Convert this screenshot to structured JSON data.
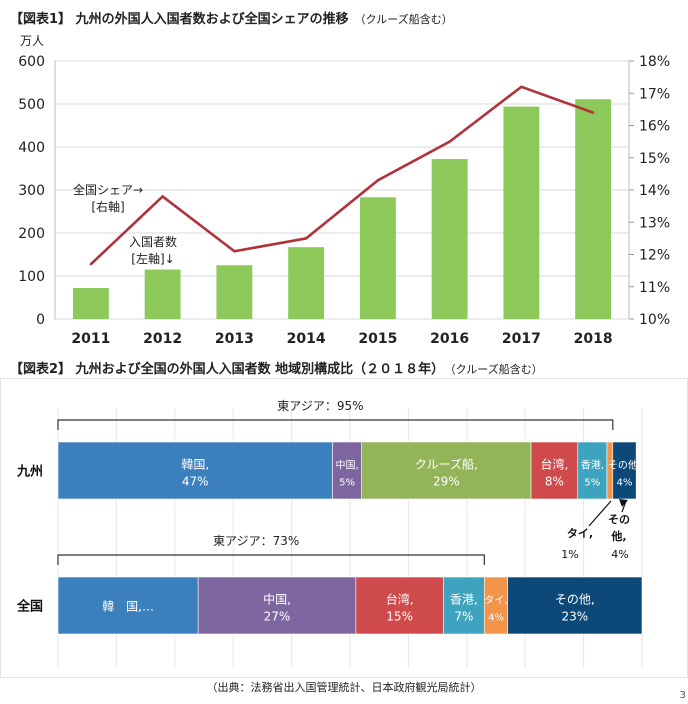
{
  "page": {
    "title1": "【図表1】 九州の外国人入国者数および全国シェアの推移",
    "title1_note": "（クルーズ船含む）",
    "title2": "【図表2】 九州および全国の外国人入国者数 地域別構成比（２０１８年）",
    "title2_note": "（クルーズ船含む）",
    "source": "（出典：法務省出入国管理統計、日本政府観光局統計）",
    "page_number": "3"
  },
  "chart_data": [
    {
      "type": "bar",
      "ylabel": "万人",
      "categories": [
        "2011",
        "2012",
        "2013",
        "2014",
        "2015",
        "2016",
        "2017",
        "2018"
      ],
      "bar_series": {
        "name": "入国者数",
        "values": [
          72,
          115,
          125,
          167,
          283,
          372,
          494,
          511
        ],
        "color": "#8cc85a"
      },
      "line_series": {
        "name": "全国シェア",
        "values": [
          11.7,
          13.8,
          12.1,
          12.5,
          14.3,
          15.5,
          17.2,
          16.4
        ],
        "color": "#b0323a"
      },
      "ylim": [
        0,
        600
      ],
      "yticks": [
        "0",
        "100",
        "200",
        "300",
        "400",
        "500",
        "600"
      ],
      "y2lim": [
        10,
        18
      ],
      "y2ticks": [
        "10%",
        "11%",
        "12%",
        "13%",
        "14%",
        "15%",
        "16%",
        "17%",
        "18%"
      ],
      "annotations": {
        "share_line1": "全国シェア→",
        "share_line2": "[右軸]",
        "count_line1": "入国者数",
        "count_line2": "[左軸]↓"
      },
      "grid": true
    },
    {
      "type": "bar",
      "stacked": true,
      "orientation": "horizontal",
      "categories": [
        "九州",
        "全国"
      ],
      "series": [
        [
          {
            "label": "韓国,",
            "pct": "47%",
            "value": 47,
            "color": "#3b7fbd"
          },
          {
            "label": "中国,",
            "pct": "5%",
            "value": 5,
            "color": "#7d65a0"
          },
          {
            "label": "クルーズ船,",
            "pct": "29%",
            "value": 29,
            "color": "#94b45a"
          },
          {
            "label": "台湾,",
            "pct": "8%",
            "value": 8,
            "color": "#cf4b4b"
          },
          {
            "label": "香港,",
            "pct": "5%",
            "value": 5,
            "color": "#3ea3bf"
          },
          {
            "label": "タイ,",
            "pct": "1%",
            "value": 1,
            "color": "#f2954b"
          },
          {
            "label": "その他,",
            "pct": "4%",
            "value": 4,
            "color": "#0c4878"
          }
        ],
        [
          {
            "label": "韓　国,…",
            "pct": "",
            "value": 24,
            "color": "#3b7fbd"
          },
          {
            "label": "中国,",
            "pct": "27%",
            "value": 27,
            "color": "#7d65a0"
          },
          {
            "label": "台湾,",
            "pct": "15%",
            "value": 15,
            "color": "#cf4b4b"
          },
          {
            "label": "香港,",
            "pct": "7%",
            "value": 7,
            "color": "#3ea3bf"
          },
          {
            "label": "タイ,",
            "pct": "4%",
            "value": 4,
            "color": "#f2954b"
          },
          {
            "label": "その他,",
            "pct": "23%",
            "value": 23,
            "color": "#0c4878"
          }
        ]
      ],
      "bracket_labels": [
        "東アジア：95%",
        "東アジア：73%"
      ],
      "bracket_spans": [
        95,
        73
      ],
      "callouts": {
        "thai_label": "タイ,",
        "thai_pct": "1%",
        "other_label": "その",
        "other_label2": "他,",
        "other_pct": "4%"
      }
    }
  ]
}
